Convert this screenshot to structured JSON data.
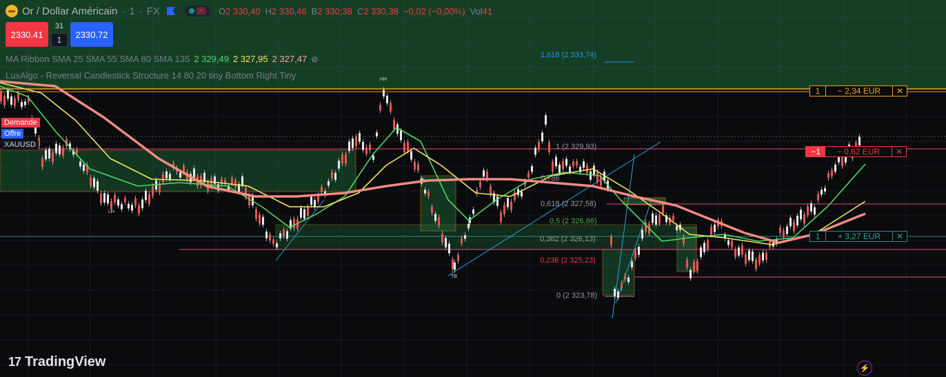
{
  "header": {
    "symbol_title": "Or / Dollar Américain",
    "interval": "1",
    "exchange": "FX",
    "ohlc": {
      "o_label": "O",
      "o_value": "2 330,40",
      "h_label": "H",
      "h_value": "2 330,46",
      "b_label": "B",
      "b_value": "2 330,38",
      "c_label": "C",
      "c_value": "2 330,38",
      "change": "−0,02 (−0,00%)",
      "vol_label": "Vol",
      "vol_value": "41"
    }
  },
  "trade": {
    "sell_price": "2330.41",
    "buy_price": "2330.72",
    "spread": "31",
    "quantity": "1"
  },
  "indicators": {
    "ma_ribbon": "MA Ribbon SMA 25 SMA 55 SMA 80 SMA 135",
    "ma_values": [
      "2 329,49",
      "2 327,95",
      "2 327,47"
    ],
    "luxalgo": "LuxAlgo - Reversal Candlestick Structure 14 80 20 tiny Bottom Right Tiny"
  },
  "side_tags": {
    "demande": "Demande",
    "offre": "Offre",
    "symbol": "XAUUSD"
  },
  "fib_levels": [
    {
      "text": "1,618 (2 333,74)",
      "color": "#2196f3"
    },
    {
      "text": "1 (2 329,93)",
      "color": "#9598a1"
    },
    {
      "text": "0,786",
      "color": "#9598a1"
    },
    {
      "text": "0,618 (2 327,58)",
      "color": "#9598a1"
    },
    {
      "text": "0,5 (2 326,86)",
      "color": "#4caf50"
    },
    {
      "text": "0,382 (2 326,13)",
      "color": "#9598a1"
    },
    {
      "text": "0,236 (2 325,23)",
      "color": "#f23645"
    },
    {
      "text": "0 (2 323,78)",
      "color": "#9598a1"
    }
  ],
  "orders": [
    {
      "qty": "1",
      "pnl": "− 2,34 EUR"
    },
    {
      "qty": "−1",
      "pnl": "− 0,62 EUR"
    },
    {
      "qty": "1",
      "pnl": "+ 3,27 EUR"
    }
  ],
  "pivots": {
    "hh": "HH",
    "lh": "LH",
    "tb": "TB",
    "hl": "HL"
  },
  "branding": {
    "logo_text": "TradingView",
    "logo_mark": "17"
  },
  "colors": {
    "bull": "#26a69a",
    "bear": "#ef5350",
    "ma_fast": "#4cd964",
    "ma_mid": "#f5e663",
    "ma_slow": "#f28b82",
    "supply": "#f0a020",
    "demand": "#1f6b3a"
  }
}
